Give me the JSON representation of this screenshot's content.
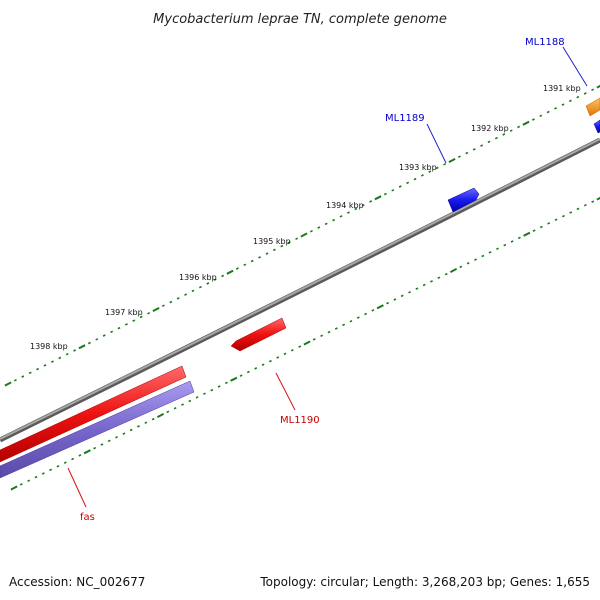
{
  "title": "Mycobacterium leprae TN, complete genome",
  "footer": {
    "accession": "Accession: NC_002677",
    "summary": "Topology: circular; Length: 3,268,203 bp; Genes: 1,655"
  },
  "kbp_labels": [
    "1391 kbp",
    "1392 kbp",
    "1393 kbp",
    "1394 kbp",
    "1395 kbp",
    "1396 kbp",
    "1397 kbp",
    "1398 kbp"
  ],
  "genes": [
    {
      "name": "ML1188",
      "color": "#0000cc"
    },
    {
      "name": "ML1189",
      "color": "#0000cc"
    },
    {
      "name": "ML1190",
      "color": "#cc0000"
    },
    {
      "name": "fas",
      "color": "#cc0000"
    }
  ],
  "colors": {
    "backbone": "#7a7a7a",
    "tick": "#1a7a1a",
    "forward_gene": "#2222ee",
    "reverse_gene": "#ee1111",
    "orange_gene": "#ff9900",
    "purple_band": "#7766cc"
  }
}
